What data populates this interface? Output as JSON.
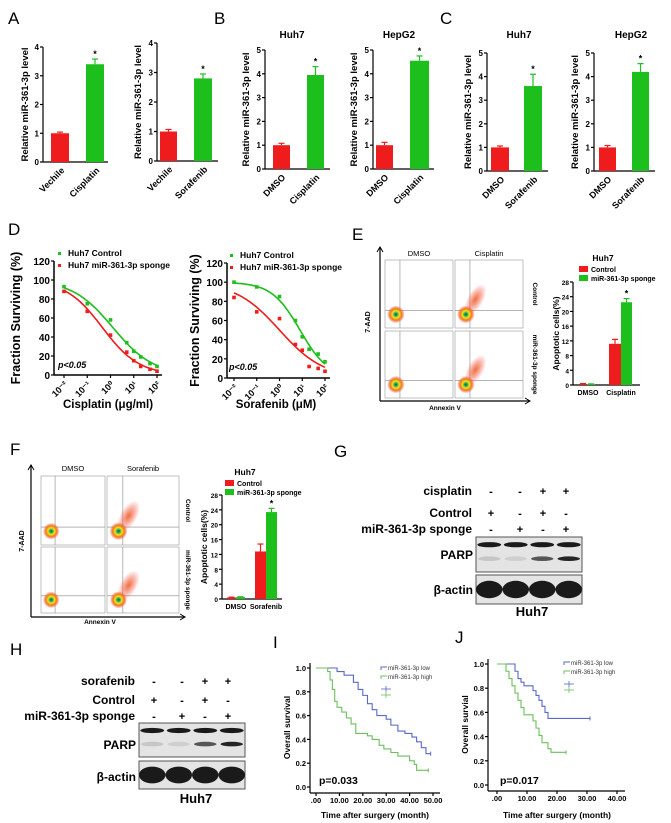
{
  "panel_labels": [
    "A",
    "B",
    "C",
    "D",
    "E",
    "F",
    "G",
    "H",
    "I",
    "J"
  ],
  "colors": {
    "red": "#ee1c1c",
    "green": "#1cbf1c",
    "km_low": "#5a68c8",
    "km_high": "#6cbf5c",
    "blot_bg": "#e4e4e4",
    "band": "#1a1a1a"
  },
  "chart_data": [
    {
      "panel": "A",
      "type": "bar",
      "ylabel": "Relative miR-361-3p level",
      "categories": [
        "Vechile",
        "Cisplatin"
      ],
      "values": [
        1.0,
        3.4
      ],
      "errors": [
        0.04,
        0.18
      ],
      "significance": [
        "",
        "*"
      ],
      "ylim": [
        0,
        4
      ],
      "yticks": [
        "0",
        "1",
        "2",
        "3",
        "4"
      ]
    },
    {
      "panel": "A",
      "type": "bar",
      "ylabel": "Relative miR-361-3p level",
      "categories": [
        "Vechile",
        "Sorafenib"
      ],
      "values": [
        1.0,
        2.8
      ],
      "errors": [
        0.07,
        0.15
      ],
      "significance": [
        "",
        "*"
      ],
      "ylim": [
        0,
        4
      ],
      "yticks": [
        "0",
        "1",
        "2",
        "3",
        "4"
      ]
    },
    {
      "panel": "B",
      "type": "bar",
      "title": "Huh7",
      "ylabel": "Relative miR-361-3p level",
      "categories": [
        "DMSO",
        "Cisplatin"
      ],
      "values": [
        1.0,
        3.95
      ],
      "errors": [
        0.08,
        0.35
      ],
      "significance": [
        "",
        "*"
      ],
      "ylim": [
        0,
        5
      ],
      "yticks": [
        "0",
        "1",
        "2",
        "3",
        "4",
        "5"
      ]
    },
    {
      "panel": "B",
      "type": "bar",
      "title": "HepG2",
      "ylabel": "Relative miR-361-3p level",
      "categories": [
        "DMSO",
        "Cisplatin"
      ],
      "values": [
        1.0,
        4.55
      ],
      "errors": [
        0.12,
        0.2
      ],
      "significance": [
        "",
        "*"
      ],
      "ylim": [
        0,
        5
      ],
      "yticks": [
        "0",
        "1",
        "2",
        "3",
        "4",
        "5"
      ]
    },
    {
      "panel": "C",
      "type": "bar",
      "title": "Huh7",
      "ylabel": "Relative miR-361-3p level",
      "categories": [
        "DMSO",
        "Sorafenib"
      ],
      "values": [
        1.0,
        3.6
      ],
      "errors": [
        0.06,
        0.5
      ],
      "significance": [
        "",
        "*"
      ],
      "ylim": [
        0,
        5
      ],
      "yticks": [
        "0",
        "1",
        "2",
        "3",
        "4",
        "5"
      ]
    },
    {
      "panel": "C",
      "type": "bar",
      "title": "HepG2",
      "ylabel": "Relative miR-361-3p level",
      "categories": [
        "DMSO",
        "Sorafenib"
      ],
      "values": [
        1.0,
        4.2
      ],
      "errors": [
        0.08,
        0.35
      ],
      "significance": [
        "",
        "*"
      ],
      "ylim": [
        0,
        5
      ],
      "yticks": [
        "0",
        "1",
        "2",
        "3",
        "4",
        "5"
      ]
    },
    {
      "panel": "D",
      "type": "scatter",
      "xscale": "log",
      "xlabel": "Cisplatin (μg/ml)",
      "ylabel": "Fraction Surviving (%)",
      "xlim": [
        0.01,
        100
      ],
      "xticks": [
        0.01,
        0.1,
        1,
        10,
        100
      ],
      "xtick_labels": [
        "10⁻²",
        "10⁻¹",
        "10⁰",
        "10¹",
        "10²"
      ],
      "ylim": [
        0,
        120
      ],
      "yticks": [
        "0",
        "20",
        "40",
        "60",
        "80",
        "100",
        "120"
      ],
      "annotation": "p<0.05",
      "legend": "top-left",
      "series": [
        {
          "name": "Huh7 Control",
          "color": "green",
          "x": [
            0.01,
            0.1,
            1,
            5,
            10,
            20,
            50,
            100
          ],
          "y": [
            93,
            75,
            58,
            34,
            25,
            19,
            12,
            9
          ]
        },
        {
          "name": "Huh7 miR-361-3p sponge",
          "color": "red",
          "x": [
            0.01,
            0.1,
            1,
            5,
            10,
            20,
            50,
            100
          ],
          "y": [
            88,
            67,
            42,
            24,
            15,
            9,
            6,
            4
          ]
        }
      ]
    },
    {
      "panel": "D",
      "type": "scatter",
      "xscale": "log",
      "xlabel": "Sorafenib (μM)",
      "ylabel": "Fraction Surviving (%)",
      "xlim": [
        0.01,
        100
      ],
      "xticks": [
        0.01,
        0.1,
        1,
        10,
        100
      ],
      "xtick_labels": [
        "10⁻²",
        "10⁻¹",
        "10⁰",
        "10¹",
        "10²"
      ],
      "ylim": [
        0,
        120
      ],
      "yticks": [
        "0",
        "20",
        "40",
        "60",
        "80",
        "100",
        "120"
      ],
      "annotation": "p<0.05",
      "legend": "top-left",
      "series": [
        {
          "name": "Huh7 Control",
          "color": "green",
          "x": [
            0.01,
            0.1,
            1,
            5,
            10,
            20,
            50,
            100
          ],
          "y": [
            100,
            95,
            85,
            60,
            43,
            30,
            25,
            17
          ]
        },
        {
          "name": "Huh7 miR-361-3p sponge",
          "color": "red",
          "x": [
            0.01,
            0.1,
            1,
            5,
            10,
            20,
            50,
            100
          ],
          "y": [
            84,
            69,
            62,
            35,
            29,
            12,
            10,
            7
          ]
        }
      ]
    },
    {
      "panel": "E",
      "type": "bar",
      "title": "Huh7",
      "ylabel": "Apoptotic cells(%)",
      "categories": [
        "DMSO",
        "Cisplatin"
      ],
      "ylim": [
        0,
        28
      ],
      "yticks": [
        "0",
        "4",
        "8",
        "12",
        "16",
        "20",
        "24",
        "28"
      ],
      "legend": "top-left",
      "series": [
        {
          "name": "Control",
          "color": "red",
          "values": [
            0.3,
            11.2
          ],
          "errors": [
            0.1,
            1.2
          ]
        },
        {
          "name": "miR-361-3p sponge",
          "color": "green",
          "values": [
            0.2,
            22.5
          ],
          "errors": [
            0.1,
            1.0
          ]
        }
      ],
      "significance": [
        "",
        "",
        "",
        "*"
      ]
    },
    {
      "panel": "F",
      "type": "bar",
      "title": "Huh7",
      "ylabel": "Apoptotic cells(%)",
      "categories": [
        "DMSO",
        "Sorafenib"
      ],
      "ylim": [
        0,
        28
      ],
      "yticks": [
        "0",
        "4",
        "8",
        "12",
        "16",
        "20",
        "24",
        "28"
      ],
      "legend": "top-left",
      "series": [
        {
          "name": "Control",
          "color": "red",
          "values": [
            0.4,
            12.8
          ],
          "errors": [
            0.1,
            2.0
          ]
        },
        {
          "name": "miR-361-3p sponge",
          "color": "green",
          "values": [
            0.5,
            23.4
          ],
          "errors": [
            0.1,
            1.0
          ]
        }
      ],
      "significance": [
        "",
        "",
        "",
        "*"
      ]
    },
    {
      "panel": "I",
      "type": "line",
      "step": true,
      "xlabel": "Time after surgery (month)",
      "ylabel": "Overall survival",
      "xlim": [
        0,
        50
      ],
      "xticks": [
        0,
        10,
        20,
        30,
        40,
        50
      ],
      "xtick_labels": [
        ".00",
        "10.00",
        "20.00",
        "30.00",
        "40.00",
        "50.00"
      ],
      "ylim": [
        0,
        1
      ],
      "yticks": [
        0,
        0.2,
        0.4,
        0.6,
        0.8,
        1.0
      ],
      "ytick_labels": [
        "0.0",
        "0.2",
        "0.4",
        "0.6",
        "0.8",
        "1.0"
      ],
      "annotation": "p=0.033",
      "legend": "top-right",
      "series": [
        {
          "name": "miR-361-3p low",
          "color": "km_low",
          "points": [
            [
              0,
              1
            ],
            [
              7,
              1
            ],
            [
              9,
              0.97
            ],
            [
              12,
              0.94
            ],
            [
              16,
              0.88
            ],
            [
              18,
              0.82
            ],
            [
              20,
              0.77
            ],
            [
              22,
              0.7
            ],
            [
              24,
              0.65
            ],
            [
              26,
              0.6
            ],
            [
              30,
              0.57
            ],
            [
              32,
              0.52
            ],
            [
              35,
              0.47
            ],
            [
              38,
              0.45
            ],
            [
              41,
              0.42
            ],
            [
              43,
              0.38
            ],
            [
              45,
              0.33
            ],
            [
              47,
              0.28
            ],
            [
              49,
              0.28
            ]
          ]
        },
        {
          "name": "miR-361-3p high",
          "color": "km_high",
          "points": [
            [
              0,
              1
            ],
            [
              5,
              0.97
            ],
            [
              6,
              0.9
            ],
            [
              7,
              0.82
            ],
            [
              8,
              0.72
            ],
            [
              9,
              0.67
            ],
            [
              11,
              0.63
            ],
            [
              13,
              0.58
            ],
            [
              15,
              0.53
            ],
            [
              17,
              0.45
            ],
            [
              22,
              0.43
            ],
            [
              24,
              0.4
            ],
            [
              27,
              0.35
            ],
            [
              29,
              0.32
            ],
            [
              32,
              0.29
            ],
            [
              35,
              0.26
            ],
            [
              40,
              0.22
            ],
            [
              42,
              0.19
            ],
            [
              43,
              0.14
            ],
            [
              48,
              0.14
            ]
          ]
        }
      ]
    },
    {
      "panel": "J",
      "type": "line",
      "step": true,
      "xlabel": "Time after surgery (month)",
      "ylabel": "Overall survial",
      "xlim": [
        0,
        40
      ],
      "xticks": [
        0,
        10,
        20,
        30,
        40
      ],
      "xtick_labels": [
        ".00",
        "10.00",
        "20.00",
        "30.00",
        "40.00"
      ],
      "ylim": [
        0,
        1
      ],
      "yticks": [
        0,
        0.2,
        0.4,
        0.6,
        0.8,
        1.0
      ],
      "ytick_labels": [
        "0.0",
        "0.2",
        "0.4",
        "0.6",
        "0.8",
        "1.0"
      ],
      "annotation": "p=0.017",
      "legend": "top-right",
      "series": [
        {
          "name": "miR-361-3p low",
          "color": "km_low",
          "points": [
            [
              0,
              1
            ],
            [
              5,
              1
            ],
            [
              6,
              0.94
            ],
            [
              7,
              0.88
            ],
            [
              8,
              0.85
            ],
            [
              9,
              0.82
            ],
            [
              12,
              0.78
            ],
            [
              13,
              0.74
            ],
            [
              14,
              0.7
            ],
            [
              15,
              0.65
            ],
            [
              16,
              0.6
            ],
            [
              17,
              0.55
            ],
            [
              31,
              0.55
            ]
          ]
        },
        {
          "name": "miR-361-3p high",
          "color": "km_high",
          "points": [
            [
              0,
              1
            ],
            [
              3,
              0.94
            ],
            [
              4,
              0.88
            ],
            [
              5,
              0.82
            ],
            [
              6,
              0.76
            ],
            [
              7,
              0.7
            ],
            [
              8,
              0.64
            ],
            [
              9,
              0.58
            ],
            [
              12,
              0.53
            ],
            [
              13,
              0.47
            ],
            [
              14,
              0.41
            ],
            [
              15,
              0.35
            ],
            [
              17,
              0.3
            ],
            [
              18,
              0.27
            ],
            [
              23,
              0.27
            ]
          ]
        }
      ]
    }
  ],
  "flow": [
    {
      "panel": "E",
      "column_labels": [
        "DMSO",
        "Cisplatin"
      ],
      "row_labels": [
        "Control",
        "miR-361-3p sponge"
      ],
      "xaxis": "Annexin V",
      "yaxis": "7-AAD"
    },
    {
      "panel": "F",
      "column_labels": [
        "DMSO",
        "Sorafenib"
      ],
      "row_labels": [
        "Control",
        "miR-361-3p sponge"
      ],
      "xaxis": "Annexin V",
      "yaxis": "7-AAD"
    }
  ],
  "western_blots": [
    {
      "panel": "G",
      "treatments": [
        {
          "label": "cisplatin",
          "signs": [
            "-",
            "-",
            "+",
            "+"
          ]
        },
        {
          "label": "Control",
          "signs": [
            "+",
            "-",
            "+",
            "-"
          ]
        },
        {
          "label": "miR-361-3p sponge",
          "signs": [
            "-",
            "+",
            "-",
            "+"
          ]
        }
      ],
      "bands": [
        "PARP",
        "β-actin"
      ],
      "cell_line": "Huh7"
    },
    {
      "panel": "H",
      "treatments": [
        {
          "label": "sorafenib",
          "signs": [
            "-",
            "-",
            "+",
            "+"
          ]
        },
        {
          "label": "Control",
          "signs": [
            "+",
            "-",
            "+",
            "-"
          ]
        },
        {
          "label": "miR-361-3p sponge",
          "signs": [
            "-",
            "+",
            "-",
            "+"
          ]
        }
      ],
      "bands": [
        "PARP",
        "β-actin"
      ],
      "cell_line": "Huh7"
    }
  ]
}
